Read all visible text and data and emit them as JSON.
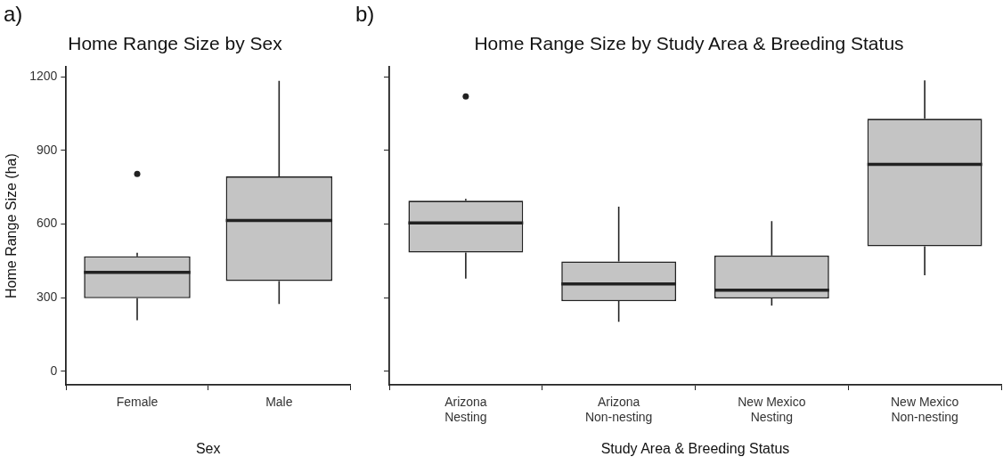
{
  "chart_data": [
    {
      "type": "box",
      "title": "Home Range Size by Sex",
      "xlabel": "Sex",
      "ylabel": "Home Range Size (ha)",
      "annotations": [
        "a)"
      ],
      "categories": [
        "Female",
        "Male"
      ],
      "series": [
        {
          "color": "#222222",
          "boxes": [
            {
              "low": 208,
              "q1": 298,
              "median": 403,
              "q3": 469,
              "high": 483,
              "outliers": [
                804
              ]
            },
            {
              "low": 274,
              "q1": 368,
              "median": 615,
              "q3": 794,
              "high": 1184
            }
          ]
        }
      ],
      "ylim": [
        -55,
        1240
      ],
      "yticks": [
        0,
        300,
        600,
        900,
        1200
      ],
      "grid": false
    },
    {
      "type": "box",
      "title": "Home Range Size by Study Area & Breeding Status",
      "xlabel": "Study Area & Breeding Status",
      "annotations": [
        "b)"
      ],
      "categories": [
        "Arizona\nNesting",
        "Arizona\nNon-nesting",
        "New Mexico\nNesting",
        "New Mexico\nNon-nesting"
      ],
      "series": [
        {
          "color": "#222222",
          "boxes": [
            {
              "low": 378,
              "q1": 484,
              "median": 605,
              "q3": 695,
              "high": 703,
              "outliers": [
                1120
              ]
            },
            {
              "low": 202,
              "q1": 286,
              "median": 356,
              "q3": 448,
              "high": 671
            },
            {
              "low": 268,
              "q1": 297,
              "median": 331,
              "q3": 472,
              "high": 612
            },
            {
              "low": 391,
              "q1": 509,
              "median": 843,
              "q3": 1029,
              "high": 1185
            }
          ]
        }
      ],
      "ylim": [
        -55,
        1240
      ],
      "yticks": [
        0,
        300,
        600,
        900,
        1200
      ],
      "grid": false,
      "tick_labels": "x"
    }
  ]
}
